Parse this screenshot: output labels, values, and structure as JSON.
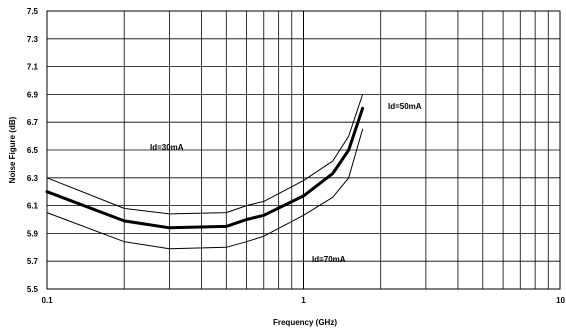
{
  "chart_data": {
    "type": "line",
    "title": "",
    "xlabel": "Frequency (GHz)",
    "ylabel": "Noise Figure (dB)",
    "xscale": "log",
    "xlim": [
      0.1,
      10
    ],
    "ylim": [
      5.5,
      7.5
    ],
    "grid": true,
    "x_ticks": [
      "0.1",
      "1",
      "10"
    ],
    "y_ticks": [
      "5.5",
      "5.7",
      "5.9",
      "6.1",
      "6.3",
      "6.5",
      "6.7",
      "6.9",
      "7.1",
      "7.3",
      "7.5"
    ],
    "series": [
      {
        "name": "Id=30mA",
        "x": [
          0.1,
          0.2,
          0.3,
          0.5,
          0.6,
          0.7,
          1.0,
          1.3,
          1.5,
          1.7
        ],
        "y": [
          6.3,
          6.08,
          6.04,
          6.05,
          6.1,
          6.13,
          6.28,
          6.42,
          6.6,
          6.9
        ]
      },
      {
        "name": "Id=50mA",
        "x": [
          0.1,
          0.2,
          0.3,
          0.5,
          0.6,
          0.7,
          1.0,
          1.3,
          1.5,
          1.7
        ],
        "y": [
          6.2,
          5.99,
          5.94,
          5.95,
          6.0,
          6.03,
          6.17,
          6.33,
          6.5,
          6.8
        ]
      },
      {
        "name": "Id=70mA",
        "x": [
          0.1,
          0.2,
          0.3,
          0.5,
          0.6,
          0.7,
          1.0,
          1.3,
          1.5,
          1.7
        ],
        "y": [
          6.05,
          5.84,
          5.79,
          5.8,
          5.84,
          5.88,
          6.03,
          6.16,
          6.3,
          6.65
        ]
      }
    ],
    "annotations": [
      "Id=30mA",
      "Id=50mA",
      "Id=70mA"
    ]
  }
}
